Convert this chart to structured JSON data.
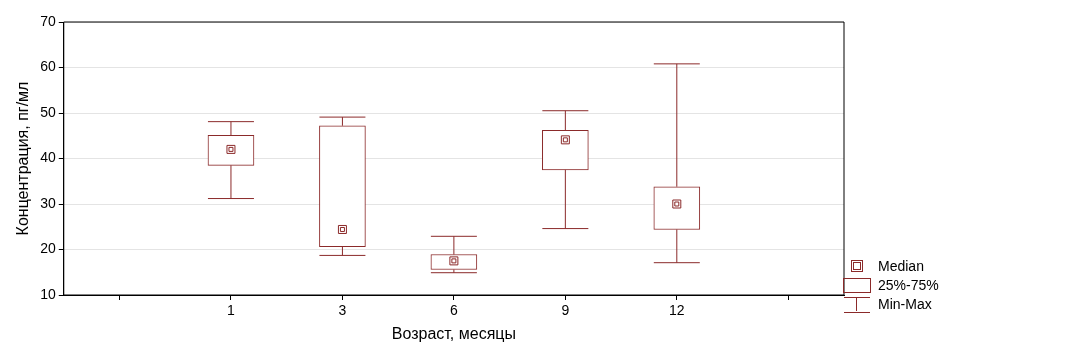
{
  "chart_data": {
    "type": "box",
    "xlabel": "Возраст, месяцы",
    "ylabel": "Концентрация, пг/мл",
    "categories": [
      null,
      "1",
      "3",
      "6",
      "9",
      "12",
      null
    ],
    "color": "#8b2a2a",
    "boxes": [
      null,
      {
        "low": 31.2,
        "q1": 38.5,
        "median": 42,
        "q3": 45.1,
        "high": 48.1
      },
      {
        "low": 18.7,
        "q1": 20.6,
        "median": 24.4,
        "q3": 47.2,
        "high": 49.1
      },
      {
        "low": 14.9,
        "q1": 15.6,
        "median": 17.5,
        "q3": 18.9,
        "high": 22.9
      },
      {
        "low": 24.6,
        "q1": 37.5,
        "median": 44.1,
        "q3": 46.2,
        "high": 50.5
      },
      {
        "low": 17.1,
        "q1": 24.4,
        "median": 30,
        "q3": 33.8,
        "high": 60.8
      },
      null
    ],
    "ylim": [
      10,
      70
    ],
    "yticks": [
      10,
      20,
      30,
      40,
      50,
      60,
      70
    ],
    "grid": "y",
    "marker": "square",
    "annotations": [
      "Median",
      "25%-75%",
      "Min-Max"
    ]
  }
}
